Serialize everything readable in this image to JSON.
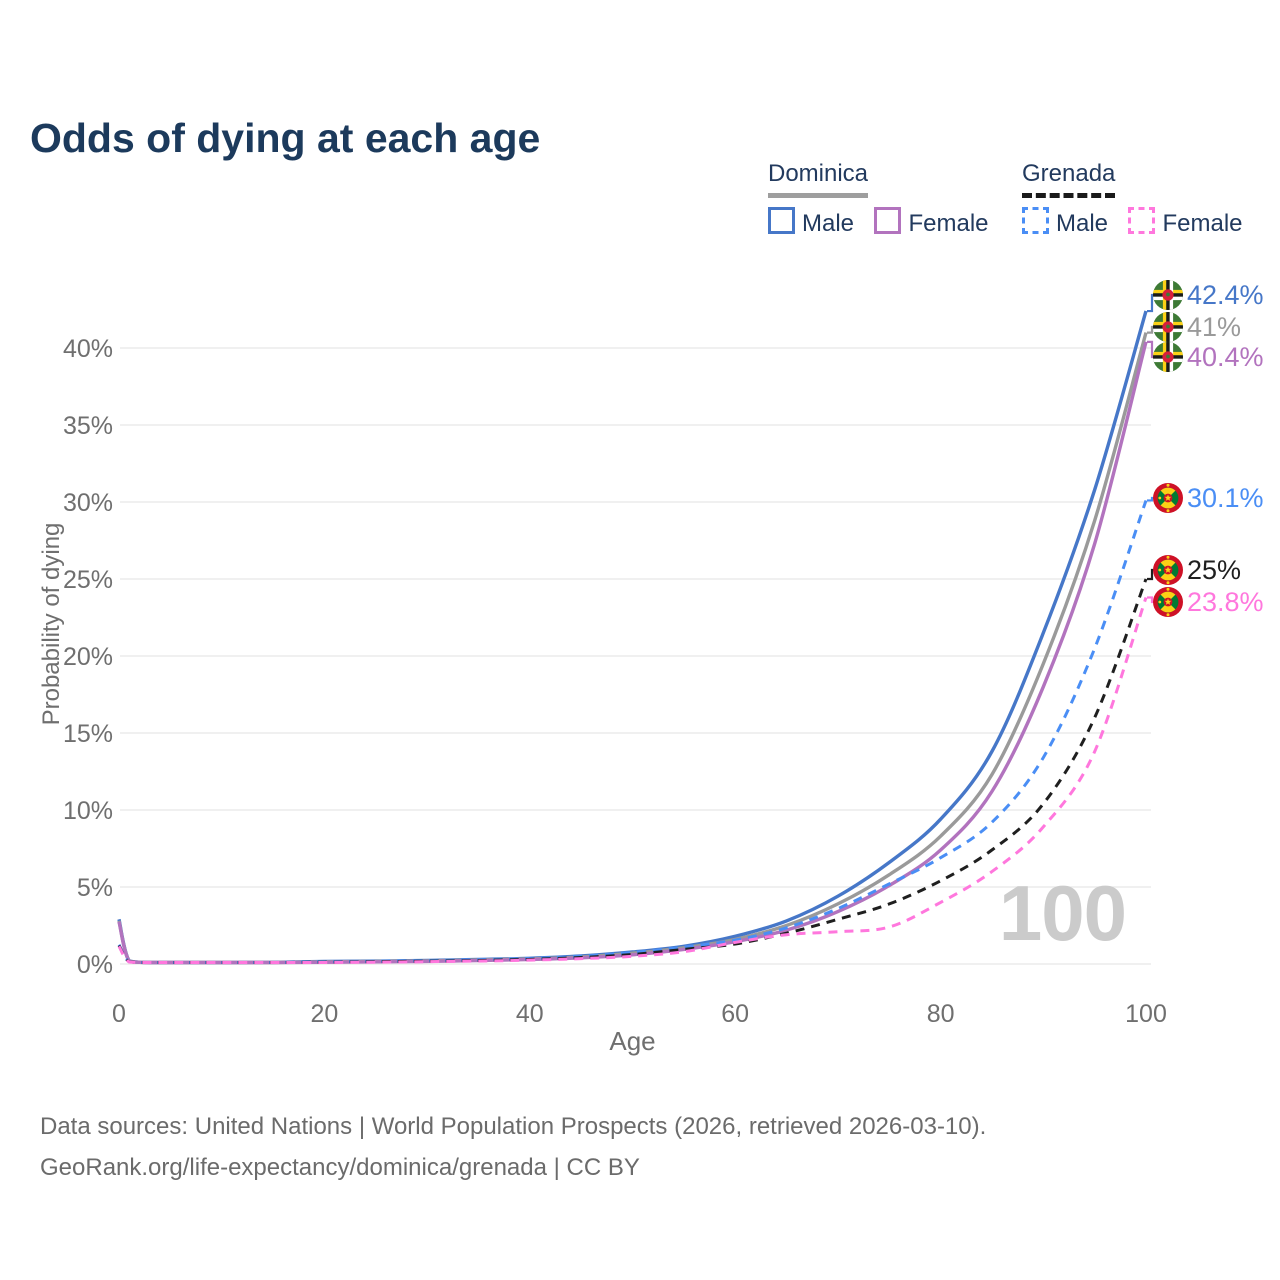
{
  "title": "Odds of dying at each age",
  "watermark_age": "100",
  "legend": {
    "groups": [
      {
        "country": "Dominica",
        "underline_style": "solid",
        "underline_color": "#9e9e9e",
        "items": [
          {
            "label": "Male",
            "color": "#4677c8",
            "dashed": false
          },
          {
            "label": "Female",
            "color": "#b273be",
            "dashed": false
          }
        ]
      },
      {
        "country": "Grenada",
        "underline_style": "dashed",
        "underline_color": "#1a1a1a",
        "items": [
          {
            "label": "Male",
            "color": "#4a8ef5",
            "dashed": true
          },
          {
            "label": "Female",
            "color": "#ff77dd",
            "dashed": true
          }
        ]
      }
    ]
  },
  "footer": {
    "line1": "Data sources: United Nations | World Population Prospects (2026, retrieved 2026-03-10).",
    "line2": "GeoRank.org/life-expectancy/dominica/grenada | CC BY"
  },
  "chart_data": {
    "type": "line",
    "title": "Odds of dying at each age",
    "xlabel": "Age",
    "ylabel": "Probability of dying",
    "xlim": [
      0,
      100
    ],
    "ylim": [
      0,
      45
    ],
    "x_ticks": [
      0,
      20,
      40,
      60,
      80,
      100
    ],
    "y_ticks": [
      0,
      5,
      10,
      15,
      20,
      25,
      30,
      35,
      40
    ],
    "y_tick_suffix": "%",
    "grid": "horizontal",
    "legend_position": "top-right",
    "ages": [
      0,
      1,
      3,
      5,
      10,
      15,
      20,
      25,
      30,
      35,
      40,
      45,
      50,
      55,
      60,
      65,
      70,
      75,
      80,
      85,
      90,
      95,
      100
    ],
    "series": [
      {
        "id": "dominica-male",
        "name": "Dominica Male",
        "color": "#4677c8",
        "dashed": false,
        "flag": "dominica",
        "end_label": "42.4%",
        "end_value": 42.4,
        "values": [
          2.9,
          0.2,
          0.08,
          0.07,
          0.08,
          0.11,
          0.16,
          0.19,
          0.23,
          0.29,
          0.37,
          0.52,
          0.78,
          1.15,
          1.8,
          2.8,
          4.4,
          6.6,
          9.4,
          13.8,
          21.5,
          30.8,
          42.4
        ]
      },
      {
        "id": "dominica-total",
        "name": "Dominica",
        "color": "#9a9a9a",
        "dashed": false,
        "flag": "dominica",
        "end_label": "41%",
        "end_value": 41,
        "values": [
          2.8,
          0.18,
          0.07,
          0.06,
          0.07,
          0.1,
          0.14,
          0.17,
          0.2,
          0.26,
          0.33,
          0.46,
          0.7,
          1.05,
          1.6,
          2.5,
          3.9,
          5.8,
          8.3,
          12.3,
          19.5,
          28.8,
          41
        ]
      },
      {
        "id": "dominica-female",
        "name": "Dominica Female",
        "color": "#b273be",
        "dashed": false,
        "flag": "dominica",
        "end_label": "40.4%",
        "end_value": 40.4,
        "values": [
          2.75,
          0.17,
          0.07,
          0.06,
          0.06,
          0.08,
          0.11,
          0.14,
          0.17,
          0.22,
          0.29,
          0.4,
          0.6,
          0.95,
          1.45,
          2.2,
          3.4,
          5.1,
          7.4,
          11.2,
          18,
          27.3,
          40.4
        ]
      },
      {
        "id": "grenada-male",
        "name": "Grenada Male",
        "color": "#4a8ef5",
        "dashed": true,
        "flag": "grenada",
        "end_label": "30.1%",
        "end_value": 30.1,
        "values": [
          1.25,
          0.15,
          0.07,
          0.06,
          0.07,
          0.1,
          0.15,
          0.18,
          0.22,
          0.28,
          0.36,
          0.5,
          0.75,
          1.1,
          1.55,
          2.35,
          3.6,
          5.2,
          6.9,
          9.2,
          13.4,
          20.5,
          30.1
        ]
      },
      {
        "id": "grenada-total",
        "name": "Grenada",
        "color": "#1f1f1f",
        "dashed": true,
        "flag": "grenada",
        "end_label": "25%",
        "end_value": 25,
        "values": [
          1.2,
          0.14,
          0.06,
          0.05,
          0.06,
          0.09,
          0.12,
          0.15,
          0.18,
          0.23,
          0.3,
          0.42,
          0.62,
          0.95,
          1.3,
          2.0,
          2.9,
          3.9,
          5.4,
          7.4,
          10.4,
          16,
          25
        ]
      },
      {
        "id": "grenada-female",
        "name": "Grenada Female",
        "color": "#ff77dd",
        "dashed": true,
        "flag": "grenada",
        "end_label": "23.8%",
        "end_value": 23.8,
        "values": [
          1.15,
          0.13,
          0.06,
          0.05,
          0.06,
          0.07,
          0.1,
          0.12,
          0.15,
          0.19,
          0.25,
          0.35,
          0.5,
          0.8,
          1.4,
          1.9,
          2.1,
          2.4,
          4.0,
          6.0,
          8.9,
          13.8,
          23.8
        ]
      }
    ],
    "flag_colors": {
      "dominica_green": "#3d7a35",
      "dominica_red": "#d6203c",
      "dominica_yellow": "#fcd116",
      "dominica_black": "#1a1a1a",
      "dominica_white": "#ffffff",
      "grenada_red": "#ce1126",
      "grenada_yellow": "#fcd116",
      "grenada_green": "#007a33"
    }
  }
}
